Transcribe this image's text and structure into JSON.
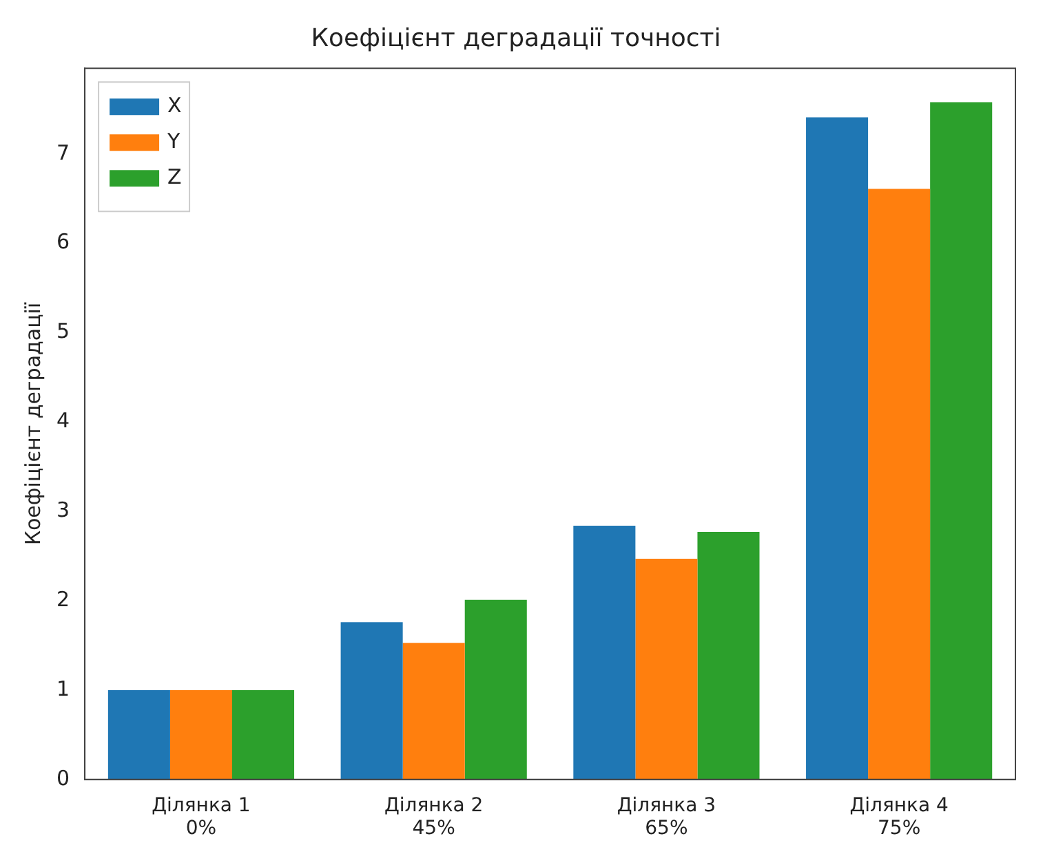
{
  "chart_data": {
    "type": "bar",
    "title": "Коефіцієнт деградації точності",
    "ylabel": "Коефіцієнт деградації",
    "categories": [
      "Ділянка 1\n0%",
      "Ділянка 2\n45%",
      "Ділянка 3\n65%",
      "Ділянка 4\n75%"
    ],
    "series": [
      {
        "name": "X",
        "color": "#1f77b4",
        "values": [
          1.0,
          1.76,
          2.84,
          7.41
        ]
      },
      {
        "name": "Y",
        "color": "#ff7f0e",
        "values": [
          1.0,
          1.53,
          2.47,
          6.61
        ]
      },
      {
        "name": "Z",
        "color": "#2ca02c",
        "values": [
          1.0,
          2.01,
          2.77,
          7.58
        ]
      }
    ],
    "ylim": [
      0,
      7.96
    ],
    "yticks": [
      0,
      1,
      2,
      3,
      4,
      5,
      6,
      7
    ],
    "grid": false,
    "legend": "top left"
  }
}
